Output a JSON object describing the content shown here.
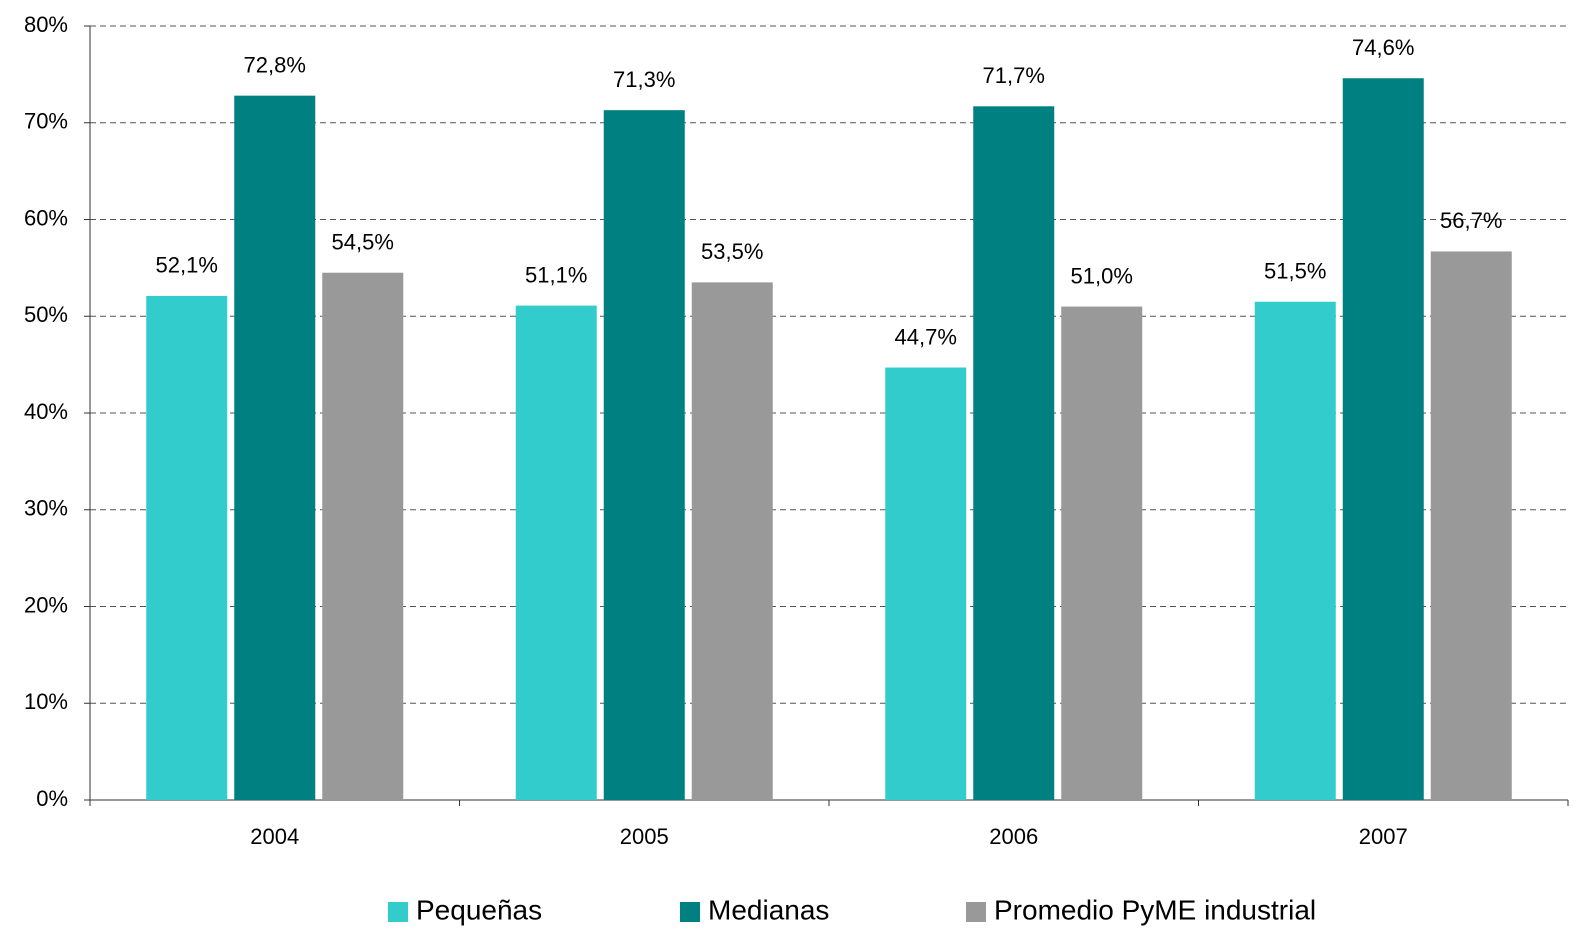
{
  "chart_data": {
    "type": "bar",
    "categories": [
      "2004",
      "2005",
      "2006",
      "2007"
    ],
    "series": [
      {
        "name": "Pequeñas",
        "color": "#33cccc",
        "values": [
          52.1,
          51.1,
          44.7,
          51.5
        ],
        "value_labels": [
          "52,1%",
          "51,1%",
          "44,7%",
          "51,5%"
        ]
      },
      {
        "name": "Medianas",
        "color": "#008080",
        "values": [
          72.8,
          71.3,
          71.7,
          74.6
        ],
        "value_labels": [
          "72,8%",
          "71,3%",
          "71,7%",
          "74,6%"
        ]
      },
      {
        "name": "Promedio PyME industrial",
        "color": "#999999",
        "values": [
          54.5,
          53.5,
          51.0,
          56.7
        ],
        "value_labels": [
          "54,5%",
          "53,5%",
          "51,0%",
          "56,7%"
        ]
      }
    ],
    "ylim": [
      0,
      80
    ],
    "yticks": [
      {
        "value": 0,
        "label": "0%"
      },
      {
        "value": 10,
        "label": "10%"
      },
      {
        "value": 20,
        "label": "20%"
      },
      {
        "value": 30,
        "label": "30%"
      },
      {
        "value": 40,
        "label": "40%"
      },
      {
        "value": 50,
        "label": "50%"
      },
      {
        "value": 60,
        "label": "60%"
      },
      {
        "value": 70,
        "label": "70%"
      },
      {
        "value": 80,
        "label": "80%"
      }
    ],
    "grid": true,
    "legend": "bottom"
  }
}
